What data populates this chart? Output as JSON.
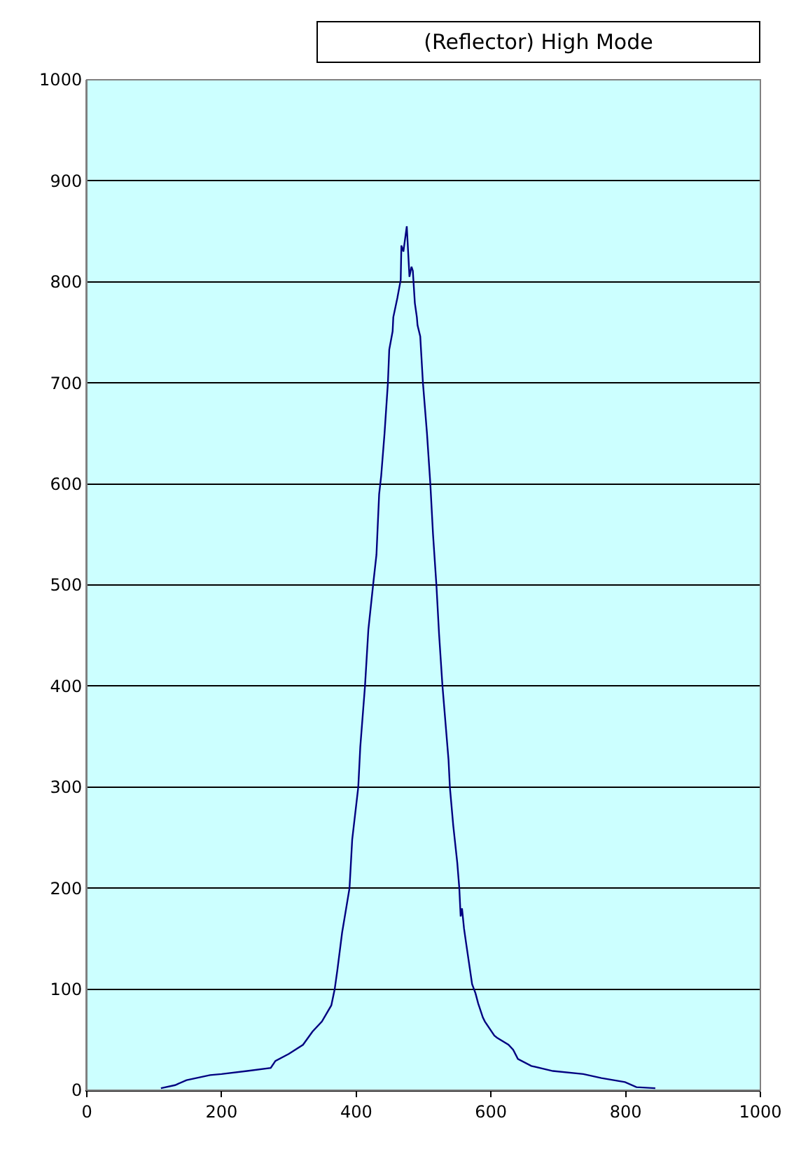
{
  "chart_data": {
    "type": "line",
    "title": "(Reflector) High Mode",
    "x": [
      110,
      131,
      148,
      183,
      200,
      238,
      273,
      280,
      300,
      321,
      335,
      349,
      363,
      368,
      372,
      379,
      385,
      390,
      394,
      403,
      406,
      413,
      418,
      425,
      430,
      434,
      437,
      442,
      447,
      449,
      454,
      455,
      461,
      466,
      467,
      470,
      473,
      475,
      477,
      479,
      482,
      484,
      487,
      490,
      491,
      495,
      499,
      505,
      510,
      514,
      519,
      523,
      528,
      537,
      539,
      544,
      550,
      553,
      555,
      557,
      560,
      563,
      572,
      577,
      581,
      588,
      591,
      605,
      609,
      626,
      633,
      640,
      660,
      692,
      737,
      764,
      799,
      816,
      844
    ],
    "series": [
      {
        "color": "#000080",
        "values": [
          2,
          5,
          10,
          15,
          16,
          19,
          22,
          29,
          36,
          45,
          58,
          68,
          84,
          100,
          119,
          156,
          180,
          200,
          248,
          300,
          340,
          400,
          456,
          500,
          530,
          590,
          608,
          650,
          700,
          733,
          751,
          765,
          784,
          802,
          836,
          830,
          845,
          855,
          830,
          805,
          815,
          811,
          779,
          765,
          757,
          746,
          700,
          650,
          600,
          550,
          500,
          451,
          400,
          327,
          300,
          262,
          225,
          200,
          172,
          180,
          160,
          146,
          105,
          96,
          86,
          72,
          68,
          54,
          52,
          45,
          40,
          31,
          24,
          19,
          16,
          12,
          8,
          3,
          2
        ]
      }
    ],
    "xlim": [
      0,
      1000
    ],
    "xticks": [
      0,
      200,
      400,
      600,
      800,
      1000
    ],
    "ylim": [
      0,
      1000
    ],
    "yticks": [
      0,
      100,
      200,
      300,
      400,
      500,
      600,
      700,
      800,
      900,
      1000
    ],
    "grid": "y"
  }
}
